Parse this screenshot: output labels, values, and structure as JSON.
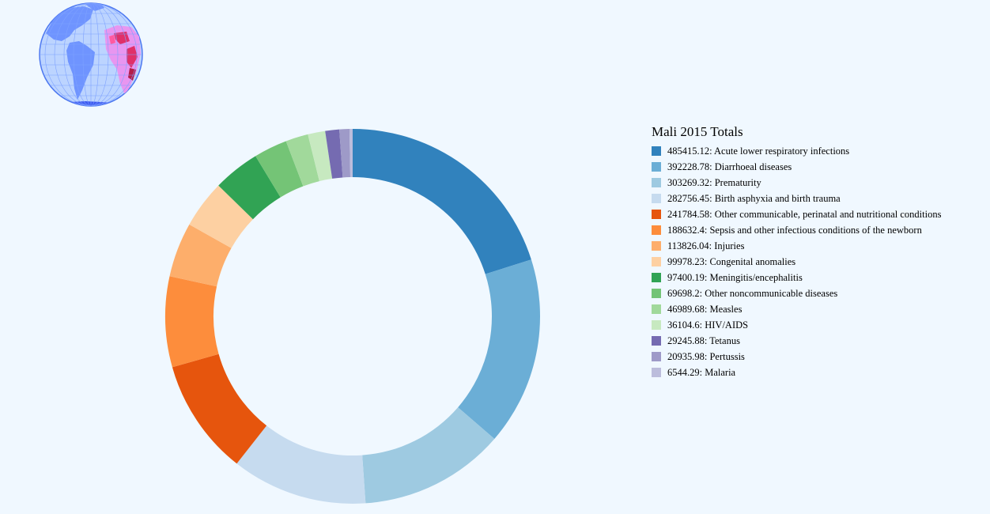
{
  "chart_data": {
    "type": "pie",
    "title": "Mali 2015 Totals",
    "donut": true,
    "categories": [
      "Acute lower respiratory infections",
      "Diarrhoeal diseases",
      "Prematurity",
      "Birth asphyxia and birth trauma",
      "Other communicable, perinatal and nutritional conditions",
      "Sepsis and other infectious conditions of the newborn",
      "Injuries",
      "Congenital anomalies",
      "Meningitis/encephalitis",
      "Other noncommunicable diseases",
      "Measles",
      "HIV/AIDS",
      "Tetanus",
      "Pertussis",
      "Malaria"
    ],
    "values": [
      485415.12,
      392228.78,
      303269.32,
      282756.45,
      241784.58,
      188632.4,
      113826.04,
      99978.23,
      97400.19,
      69698.2,
      46989.68,
      36104.6,
      29245.88,
      20935.98,
      6544.29
    ],
    "value_labels": [
      "485415.12",
      "392228.78",
      "303269.32",
      "282756.45",
      "241784.58",
      "188632.4",
      "113826.04",
      "99978.23",
      "97400.19",
      "69698.2",
      "46989.68",
      "36104.6",
      "29245.88",
      "20935.98",
      "6544.29"
    ],
    "colors": [
      "#3182bd",
      "#6baed6",
      "#9ecae1",
      "#c6dbef",
      "#e6550d",
      "#fd8d3c",
      "#fdae6b",
      "#fdd0a2",
      "#31a354",
      "#74c476",
      "#a1d99b",
      "#c7e9c0",
      "#756bb1",
      "#9e9ac8",
      "#bcbddc"
    ],
    "legend_position": "right"
  },
  "globe": {
    "icon": "globe-icon",
    "ocean_color": "#bcd4ff",
    "land_color": "#6f94ff",
    "highlight_color": "#e0306a"
  }
}
